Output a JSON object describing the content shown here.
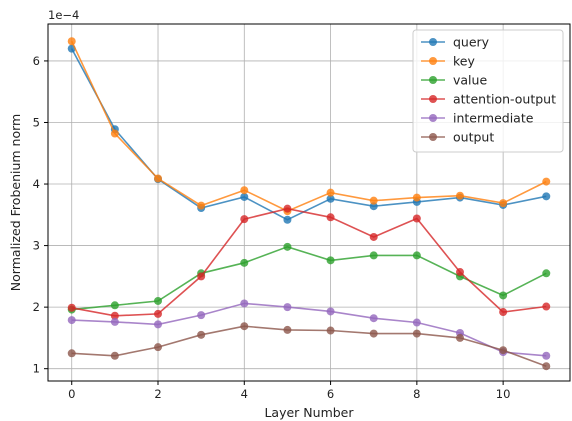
{
  "chart_data": {
    "type": "line",
    "xlabel": "Layer Number",
    "ylabel": "Normalized Frobenium norm",
    "y_scale_label": "1e−4",
    "xlim": [
      -0.55,
      11.55
    ],
    "ylim": [
      0.8,
      6.6
    ],
    "xticks": [
      0,
      2,
      4,
      6,
      8,
      10
    ],
    "yticks": [
      1,
      2,
      3,
      4,
      5,
      6
    ],
    "grid": true,
    "legend_position": "top-right",
    "x": [
      0,
      1,
      2,
      3,
      4,
      5,
      6,
      7,
      8,
      9,
      10,
      11
    ],
    "series": [
      {
        "name": "query",
        "color": "#1f77b4",
        "values": [
          6.2,
          4.89,
          4.08,
          3.61,
          3.79,
          3.42,
          3.76,
          3.64,
          3.71,
          3.78,
          3.66,
          3.8
        ]
      },
      {
        "name": "key",
        "color": "#ff7f0e",
        "values": [
          6.32,
          4.82,
          4.09,
          3.65,
          3.9,
          3.56,
          3.86,
          3.73,
          3.78,
          3.81,
          3.69,
          4.04
        ]
      },
      {
        "name": "value",
        "color": "#2ca02c",
        "values": [
          1.96,
          2.03,
          2.1,
          2.55,
          2.72,
          2.98,
          2.76,
          2.84,
          2.84,
          2.5,
          2.19,
          2.55
        ]
      },
      {
        "name": "attention-output",
        "color": "#d62728",
        "values": [
          1.99,
          1.86,
          1.89,
          2.5,
          3.43,
          3.6,
          3.46,
          3.14,
          3.44,
          2.57,
          1.92,
          2.01
        ]
      },
      {
        "name": "intermediate",
        "color": "#9467bd",
        "values": [
          1.79,
          1.76,
          1.72,
          1.87,
          2.06,
          2.0,
          1.93,
          1.82,
          1.75,
          1.58,
          1.27,
          1.21
        ]
      },
      {
        "name": "output",
        "color": "#8c564b",
        "values": [
          1.25,
          1.21,
          1.35,
          1.55,
          1.69,
          1.63,
          1.62,
          1.57,
          1.57,
          1.5,
          1.3,
          1.04
        ]
      }
    ]
  }
}
